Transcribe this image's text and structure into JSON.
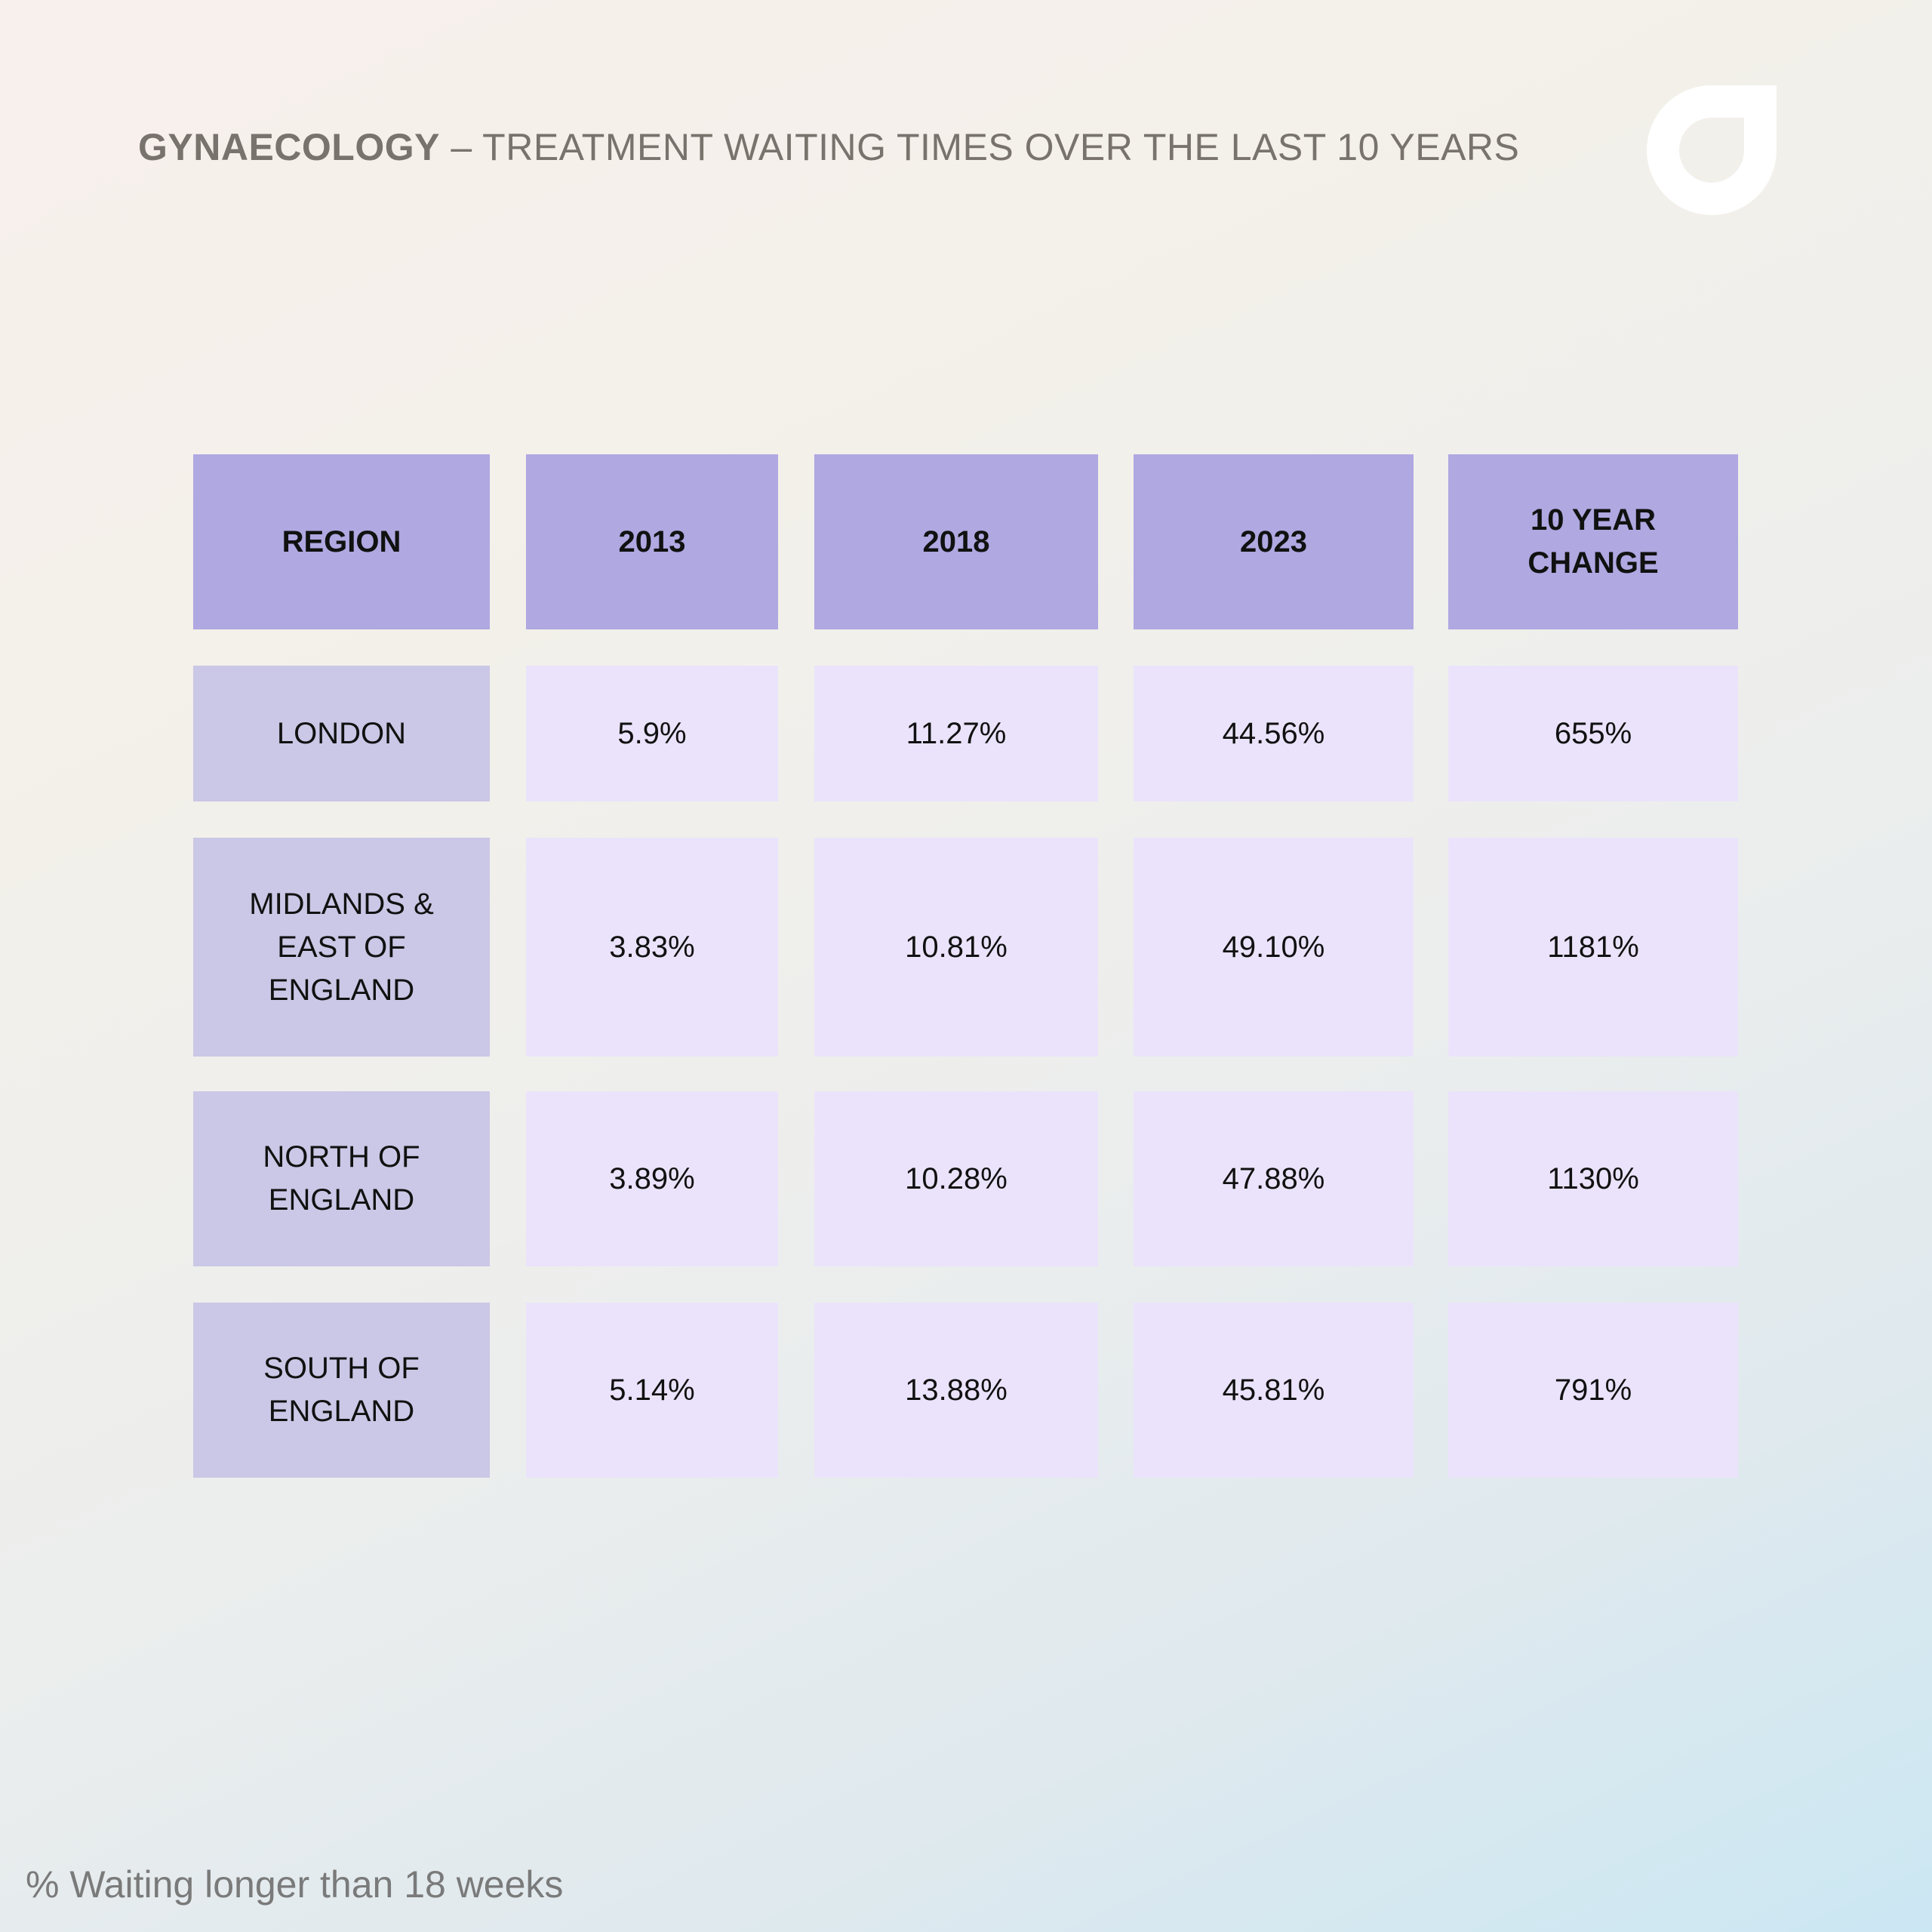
{
  "title": {
    "bold": "GYNAECOLOGY",
    "rest": " – TREATMENT WAITING TIMES OVER THE LAST 10 YEARS"
  },
  "colors": {
    "header_bg": "#afa8e1",
    "region_bg": "#cbc7e6",
    "value_bg": "#ebe3fb",
    "title_text": "#78736d",
    "logo": "#ffffff"
  },
  "logo_icon": "brand-logo-icon",
  "footnote": "% Waiting longer than 18 weeks",
  "chart_data": {
    "type": "table",
    "title": "GYNAECOLOGY – TREATMENT WAITING TIMES OVER THE LAST 10 YEARS",
    "columns": [
      "REGION",
      "2013",
      "2018",
      "2023",
      "10 YEAR\nCHANGE"
    ],
    "rows": [
      [
        "LONDON",
        "5.9%",
        "11.27%",
        "44.56%",
        "655%"
      ],
      [
        "MIDLANDS &\nEAST OF\nENGLAND",
        "3.83%",
        "10.81%",
        "49.10%",
        "1181%"
      ],
      [
        "NORTH OF\nENGLAND",
        "3.89%",
        "10.28%",
        "47.88%",
        "1130%"
      ],
      [
        "SOUTH OF\nENGLAND",
        "5.14%",
        "13.88%",
        "45.81%",
        "791%"
      ]
    ]
  }
}
